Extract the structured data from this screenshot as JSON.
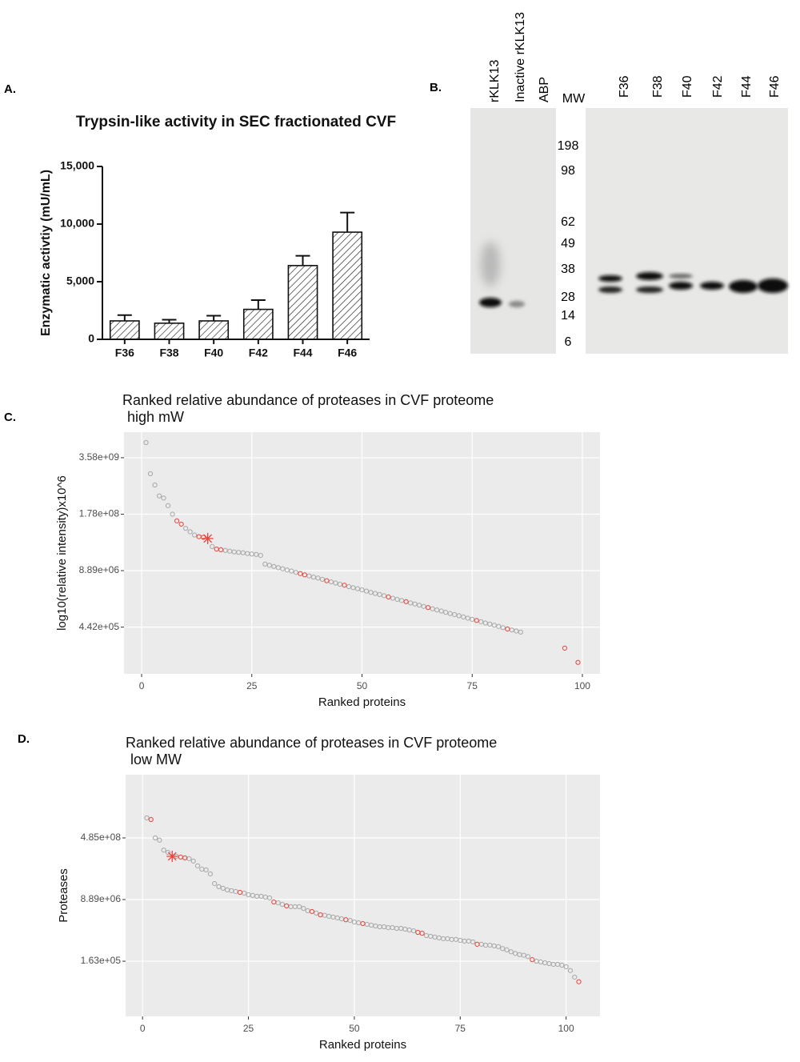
{
  "panel_labels": [
    "A.",
    "B.",
    "C.",
    "D."
  ],
  "gel": {
    "lane_labels": [
      "rKLK13",
      "Inactive rKLK13",
      "ABP"
    ],
    "mw_label": "MW",
    "mw_markers": [
      "198",
      "98",
      "62",
      "49",
      "38",
      "28",
      "14",
      "6"
    ],
    "fraction_labels": [
      "F36",
      "F38",
      "F40",
      "F42",
      "F44",
      "F46"
    ]
  },
  "chart_data": [
    {
      "type": "bar",
      "title": "Trypsin-like activity in SEC fractionated CVF",
      "y_label": "Enzymatic activtiy (mU/mL)",
      "categories": [
        "F36",
        "F38",
        "F40",
        "F42",
        "F44",
        "F46"
      ],
      "values": [
        1600,
        1400,
        1600,
        2600,
        6400,
        9300
      ],
      "errors": [
        500,
        300,
        450,
        800,
        850,
        1700
      ],
      "color": "#111111",
      "ylim": [
        0,
        15000
      ],
      "yticks": [
        0,
        {
          "value": 5000,
          "label": "5,000"
        },
        {
          "value": 10000,
          "label": "10,000"
        },
        {
          "value": 15000,
          "label": "15,000"
        }
      ]
    },
    {
      "type": "scatter",
      "title": "Ranked relative abundance of proteases in CVF proteome",
      "subtitle": "high mW",
      "x_label": "Ranked proteins",
      "y_label": "log10(relative intensity)x10^6",
      "log_y": true,
      "grid": true,
      "xlim": [
        -4,
        104
      ],
      "xticks": [
        0,
        25,
        50,
        75,
        100
      ],
      "ylim": [
        37000,
        13900000000
      ],
      "yticks": [
        {
          "value": 442000,
          "label": "4.42e+05"
        },
        {
          "value": 8890000,
          "label": "8.89e+06"
        },
        {
          "value": 178000000,
          "label": "1.78e+08"
        },
        {
          "value": 3580000000,
          "label": "3.58e+09"
        }
      ],
      "series": [
        {
          "color": "#a6a6a6",
          "marker": "circle",
          "x": [
            1,
            2,
            3,
            4,
            5,
            6,
            7,
            10,
            11,
            12,
            16,
            19,
            20,
            21,
            22,
            23,
            24,
            25,
            26,
            27,
            28,
            29,
            30,
            31,
            32,
            33,
            34,
            35,
            38,
            39,
            40,
            41,
            43,
            44,
            45,
            47,
            48,
            49,
            50,
            51,
            52,
            53,
            54,
            55,
            57,
            58,
            59,
            61,
            62,
            63,
            64,
            66,
            67,
            68,
            69,
            70,
            71,
            72,
            73,
            74,
            75,
            77,
            78,
            79,
            80,
            81,
            82,
            84,
            85,
            86
          ],
          "values": [
            8000000000.0,
            1530000000.0,
            840000000.0,
            470000000.0,
            420000000.0,
            280000000.0,
            178000000.0,
            84000000.0,
            70000000.0,
            59000000.0,
            32000000.0,
            26000000.0,
            25000000.0,
            24000000.0,
            23500000.0,
            23000000.0,
            22000000.0,
            21500000.0,
            21000000.0,
            20000000.0,
            12600000.0,
            11800000.0,
            11100000.0,
            10400000.0,
            9800000.0,
            9200000.0,
            8700000.0,
            8100000.0,
            6700000.0,
            6300000.0,
            6000000.0,
            5600000.0,
            4900000.0,
            4600000.0,
            4300000.0,
            3800000.0,
            3600000.0,
            3400000.0,
            3200000.0,
            3000000.0,
            2800000.0,
            2650000.0,
            2500000.0,
            2350000.0,
            2050000.0,
            1930000.0,
            1820000.0,
            1600000.0,
            1510000.0,
            1420000.0,
            1330000.0,
            1170000.0,
            1100000.0,
            1040000.0,
            970000.0,
            910000.0,
            860000.0,
            810000.0,
            760000.0,
            710000.0,
            670000.0,
            590000.0,
            550000.0,
            520000.0,
            490000.0,
            460000.0,
            430000.0,
            380000.0,
            360000.0,
            340000.0
          ]
        },
        {
          "color": "#e8423a",
          "marker": "circle",
          "x": [
            8,
            9,
            13,
            14,
            17,
            18,
            36,
            37,
            42,
            46,
            56,
            60,
            65,
            76,
            83,
            96,
            99
          ],
          "values": [
            125000000.0,
            105000000.0,
            54000000.0,
            52000000.0,
            28000000.0,
            27000000.0,
            7600000.0,
            7100000.0,
            5200000.0,
            4100000.0,
            2200000.0,
            1710000.0,
            1250000.0,
            630000.0,
            400000.0,
            145000.0,
            68000.0
          ]
        },
        {
          "color": "#e8423a",
          "marker": "asterisk",
          "x": [
            15
          ],
          "values": [
            49000000.0
          ]
        }
      ]
    },
    {
      "type": "scatter",
      "title": "Ranked relative abundance of proteases in CVF proteome",
      "subtitle": "low MW",
      "x_label": "Ranked proteins",
      "y_label": "Proteases",
      "log_y": true,
      "grid": true,
      "xlim": [
        -4,
        108
      ],
      "xticks": [
        0,
        25,
        50,
        75,
        100
      ],
      "ylim": [
        4550,
        29300000000
      ],
      "yticks": [
        {
          "value": 163000,
          "label": "1.63e+05"
        },
        {
          "value": 8890000,
          "label": "8.89e+06"
        },
        {
          "value": 485000000,
          "label": "4.85e+08"
        }
      ],
      "series": [
        {
          "color": "#a6a6a6",
          "marker": "circle",
          "x": [
            1,
            3,
            4,
            5,
            6,
            8,
            11,
            12,
            13,
            14,
            15,
            16,
            17,
            18,
            19,
            20,
            21,
            22,
            24,
            25,
            26,
            27,
            28,
            29,
            30,
            32,
            33,
            35,
            36,
            37,
            38,
            39,
            41,
            43,
            44,
            45,
            46,
            47,
            49,
            50,
            51,
            53,
            54,
            55,
            56,
            57,
            58,
            59,
            60,
            61,
            62,
            63,
            64,
            67,
            68,
            69,
            70,
            71,
            72,
            73,
            74,
            75,
            76,
            77,
            78,
            80,
            81,
            82,
            83,
            84,
            85,
            86,
            87,
            88,
            89,
            90,
            91,
            93,
            94,
            95,
            96,
            97,
            98,
            99,
            100,
            101,
            102
          ],
          "values": [
            1780000000.0,
            485000000.0,
            420000000.0,
            220000000.0,
            190000000.0,
            147000000.0,
            126000000.0,
            108000000.0,
            79000000.0,
            64000000.0,
            61000000.0,
            47000000.0,
            25000000.0,
            20500000.0,
            18500000.0,
            16600000.0,
            15800000.0,
            15000000.0,
            13500000.0,
            12200000.0,
            11600000.0,
            11000000.0,
            11000000.0,
            10400000.0,
            9900000.0,
            7200000.0,
            6500000.0,
            5600000.0,
            5600000.0,
            5600000.0,
            5000000.0,
            4300000.0,
            3700000.0,
            3200000.0,
            3000000.0,
            2850000.0,
            2700000.0,
            2550000.0,
            2300000.0,
            2070000.0,
            1970000.0,
            1780000.0,
            1690000.0,
            1600000.0,
            1520000.0,
            1520000.0,
            1440000.0,
            1440000.0,
            1370000.0,
            1370000.0,
            1300000.0,
            1230000.0,
            1170000.0,
            860000.0,
            820000.0,
            780000.0,
            740000.0,
            700000.0,
            700000.0,
            670000.0,
            670000.0,
            630000.0,
            600000.0,
            600000.0,
            570000.0,
            490000.0,
            460000.0,
            460000.0,
            440000.0,
            420000.0,
            370000.0,
            340000.0,
            300000.0,
            270000.0,
            250000.0,
            240000.0,
            220000.0,
            163000.0,
            155000.0,
            147000.0,
            140000.0,
            133000.0,
            133000.0,
            126000.0,
            114000.0,
            89000.0,
            58000.0
          ]
        },
        {
          "color": "#e8423a",
          "marker": "circle",
          "x": [
            2,
            9,
            10,
            23,
            31,
            34,
            40,
            42,
            48,
            52,
            65,
            66,
            79,
            92,
            103
          ],
          "values": [
            1600000000.0,
            140000000.0,
            133000000.0,
            14200000.0,
            7600000.0,
            5900000.0,
            4100000.0,
            3300000.0,
            2400000.0,
            1870000.0,
            1060000.0,
            1000000.0,
            490000.0,
            180000.0,
            43000.0
          ]
        },
        {
          "color": "#e8423a",
          "marker": "asterisk",
          "x": [
            7
          ],
          "values": [
            147000000.0
          ]
        }
      ]
    }
  ]
}
